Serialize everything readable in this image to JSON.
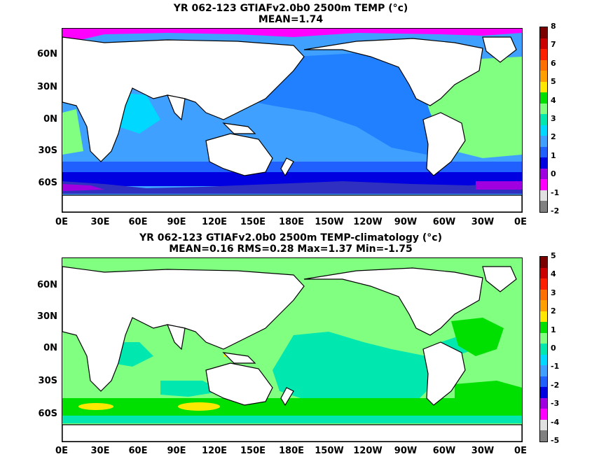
{
  "panels": [
    {
      "title_line1": "YR 062-123 GTIAFv2.0b0 2500m TEMP (°c)",
      "title_line2": "MEAN=1.74",
      "colorbar": {
        "labels": [
          "8",
          "7",
          "6",
          "5",
          "4",
          "3",
          "2",
          "1",
          "0",
          "-1",
          "-2"
        ],
        "colors": [
          "#7a0000",
          "#cc0000",
          "#ff2000",
          "#ff7000",
          "#ffa000",
          "#ffe800",
          "#00e000",
          "#80ff80",
          "#00e8b0",
          "#00d8ff",
          "#40a0ff",
          "#2060ff",
          "#0000e0",
          "#a000e0",
          "#ff00ff",
          "#e0e0e0",
          "#808080"
        ]
      }
    },
    {
      "title_line1": "YR 062-123 GTIAFv2.0b0 2500m TEMP-climatology (°c)",
      "title_line2": "MEAN=0.16   RMS=0.28   Max=1.37   Min=-1.75",
      "colorbar": {
        "labels": [
          "5",
          "4",
          "3",
          "2",
          "1",
          "0",
          "-1",
          "-2",
          "-3",
          "-4",
          "-5"
        ],
        "colors": [
          "#7a0000",
          "#cc0000",
          "#ff2000",
          "#ff7000",
          "#ffa000",
          "#ffe800",
          "#00e000",
          "#80ff80",
          "#00e8b0",
          "#00d8ff",
          "#40a0ff",
          "#2060ff",
          "#0000e0",
          "#a000e0",
          "#ff00ff",
          "#e0e0e0",
          "#808080"
        ]
      }
    }
  ],
  "lat_labels": [
    "60N",
    "30N",
    "0N",
    "30S",
    "60S"
  ],
  "lon_labels": [
    "0E",
    "30E",
    "60E",
    "90E",
    "120E",
    "150E",
    "180E",
    "150W",
    "120W",
    "90W",
    "60W",
    "30W",
    "0E"
  ]
}
